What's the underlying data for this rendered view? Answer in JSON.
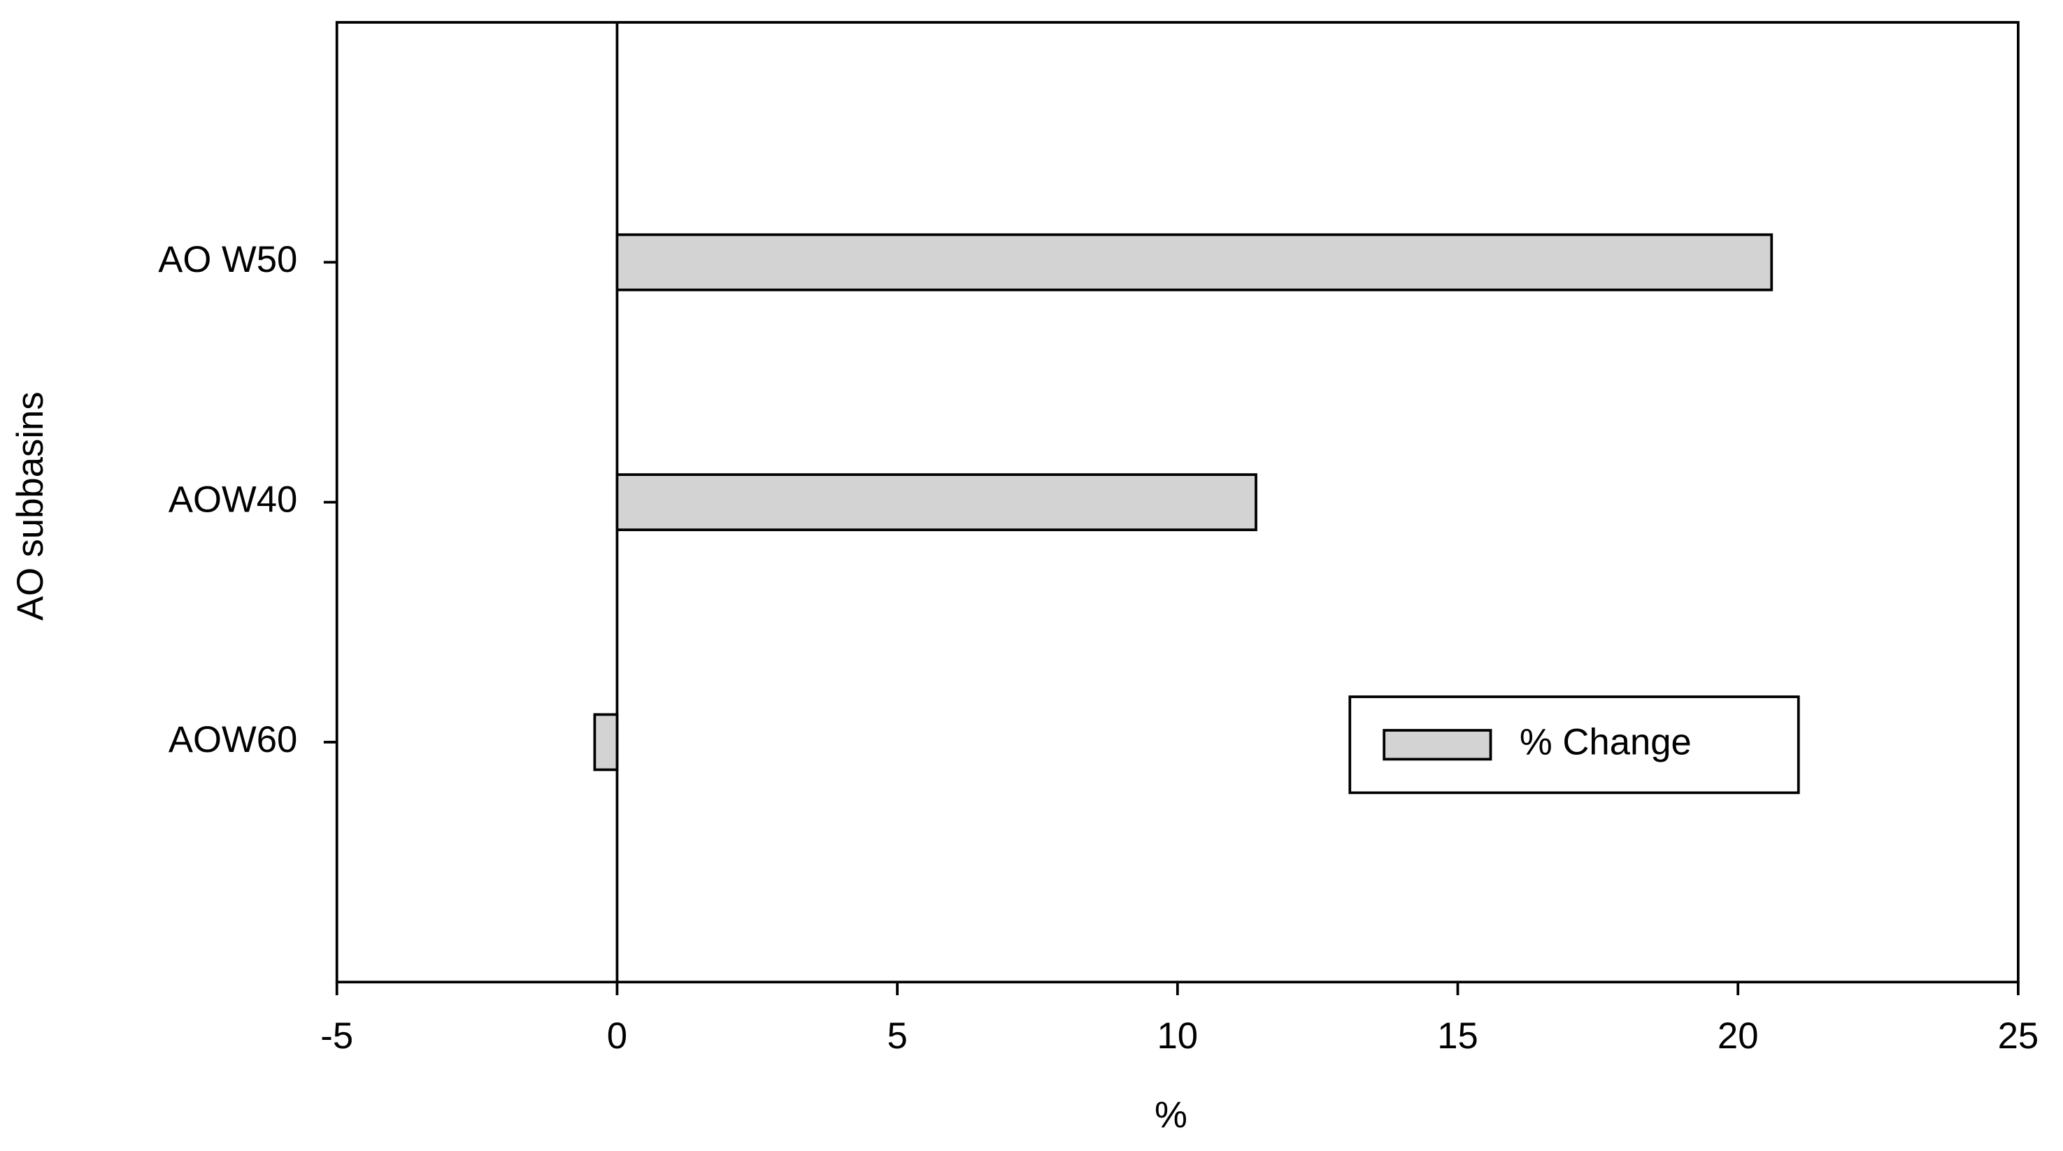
{
  "chart_data": {
    "type": "barh",
    "xlabel": "%",
    "ylabel": "AO subbasins",
    "categories": [
      "AO W50",
      "AOW40",
      "AOW60"
    ],
    "series": [
      {
        "name": "% Change",
        "color": "#d3d3d3",
        "values": [
          20.6,
          11.4,
          -0.4
        ]
      }
    ],
    "xlim": [
      -5,
      25
    ],
    "xticks": [
      -5,
      0,
      5,
      10,
      15,
      20,
      25
    ],
    "legend": "lower right"
  }
}
